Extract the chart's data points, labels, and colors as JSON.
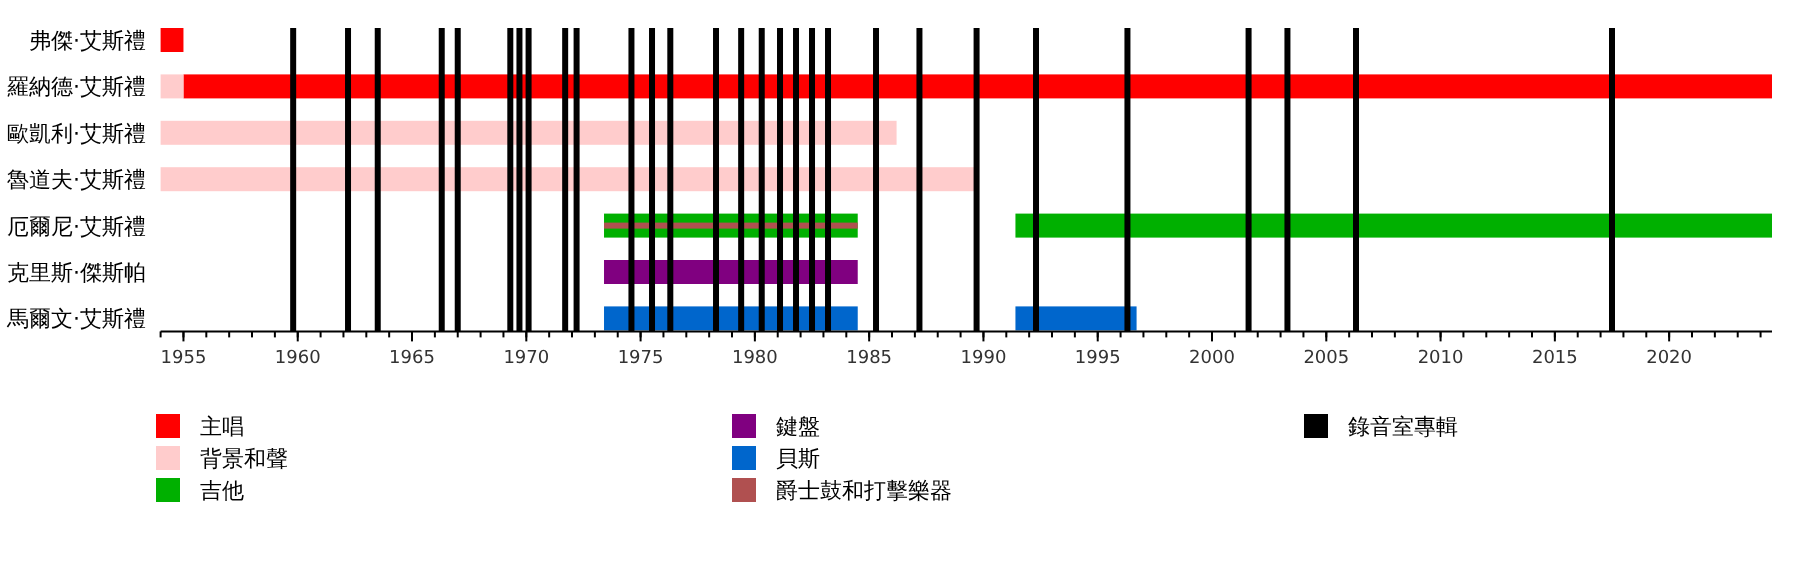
{
  "chart_data": {
    "type": "bar",
    "orientation": "horizontal",
    "legend": "bottom",
    "categories": [
      "弗傑·艾斯禮",
      "羅納德·艾斯禮",
      "歐凱利·艾斯禮",
      "魯道夫·艾斯禮",
      "厄爾尼·艾斯禮",
      "克里斯·傑斯帕",
      "馬爾文·艾斯禮"
    ],
    "xlim": [
      1954,
      2024.5
    ],
    "xticks": [
      1955,
      1960,
      1965,
      1970,
      1975,
      1980,
      1985,
      1990,
      1995,
      2000,
      2005,
      2010,
      2015,
      2020
    ],
    "series": [
      {
        "name": "主唱",
        "color": "#ff0000",
        "base": [
          1954,
          1955,
          null,
          null,
          null,
          null,
          null
        ],
        "values": [
          1,
          69.5,
          null,
          null,
          null,
          null,
          null
        ]
      },
      {
        "name": "背景和聲",
        "color": "#ffcccc",
        "base": [
          null,
          1954,
          1954,
          1954,
          null,
          null,
          null
        ],
        "values": [
          null,
          1,
          32.2,
          35.8,
          null,
          null,
          null
        ]
      },
      {
        "name": "吉他",
        "color": "#00b000",
        "base": [
          null,
          null,
          null,
          null,
          1973.4,
          null,
          null
        ],
        "values": [
          null,
          null,
          null,
          null,
          11.1,
          null,
          null
        ]
      },
      {
        "color": "#00b000",
        "base": [
          null,
          null,
          null,
          null,
          1991.4,
          null,
          null
        ],
        "values": [
          null,
          null,
          null,
          null,
          33.1,
          null,
          null
        ]
      },
      {
        "name": "鍵盤",
        "color": "#800080",
        "base": [
          null,
          null,
          null,
          null,
          null,
          1973.4,
          null
        ],
        "values": [
          null,
          null,
          null,
          null,
          null,
          11.1,
          null
        ]
      },
      {
        "name": "貝斯",
        "color": "#0066cc",
        "base": [
          null,
          null,
          null,
          null,
          null,
          null,
          1973.4
        ],
        "values": [
          null,
          null,
          null,
          null,
          null,
          null,
          11.1
        ]
      },
      {
        "color": "#0066cc",
        "base": [
          null,
          null,
          null,
          null,
          null,
          null,
          1991.4
        ],
        "values": [
          null,
          null,
          null,
          null,
          null,
          null,
          5.3
        ]
      },
      {
        "name": "爵士鼓和打擊樂器",
        "color": "#b05050",
        "base": [
          null,
          null,
          null,
          null,
          1973.4,
          null,
          null
        ],
        "values": [
          null,
          null,
          null,
          null,
          11.1,
          null,
          null
        ]
      }
    ],
    "ref_lines": [
      {
        "axis": "x",
        "value": 1959.8,
        "color": "#000000",
        "label": "錄音室專輯"
      },
      {
        "axis": "x",
        "value": 1962.2,
        "color": "#000000"
      },
      {
        "axis": "x",
        "value": 1963.5,
        "color": "#000000"
      },
      {
        "axis": "x",
        "value": 1966.3,
        "color": "#000000"
      },
      {
        "axis": "x",
        "value": 1967.0,
        "color": "#000000"
      },
      {
        "axis": "x",
        "value": 1969.3,
        "color": "#000000"
      },
      {
        "axis": "x",
        "value": 1969.7,
        "color": "#000000"
      },
      {
        "axis": "x",
        "value": 1970.1,
        "color": "#000000"
      },
      {
        "axis": "x",
        "value": 1971.7,
        "color": "#000000"
      },
      {
        "axis": "x",
        "value": 1972.2,
        "color": "#000000"
      },
      {
        "axis": "x",
        "value": 1974.6,
        "color": "#000000"
      },
      {
        "axis": "x",
        "value": 1975.5,
        "color": "#000000"
      },
      {
        "axis": "x",
        "value": 1976.3,
        "color": "#000000"
      },
      {
        "axis": "x",
        "value": 1978.3,
        "color": "#000000"
      },
      {
        "axis": "x",
        "value": 1979.4,
        "color": "#000000"
      },
      {
        "axis": "x",
        "value": 1980.3,
        "color": "#000000"
      },
      {
        "axis": "x",
        "value": 1981.1,
        "color": "#000000"
      },
      {
        "axis": "x",
        "value": 1981.8,
        "color": "#000000"
      },
      {
        "axis": "x",
        "value": 1982.5,
        "color": "#000000"
      },
      {
        "axis": "x",
        "value": 1983.2,
        "color": "#000000"
      },
      {
        "axis": "x",
        "value": 1985.3,
        "color": "#000000"
      },
      {
        "axis": "x",
        "value": 1987.2,
        "color": "#000000"
      },
      {
        "axis": "x",
        "value": 1989.7,
        "color": "#000000"
      },
      {
        "axis": "x",
        "value": 1992.3,
        "color": "#000000"
      },
      {
        "axis": "x",
        "value": 1996.3,
        "color": "#000000"
      },
      {
        "axis": "x",
        "value": 2001.6,
        "color": "#000000"
      },
      {
        "axis": "x",
        "value": 2003.3,
        "color": "#000000"
      },
      {
        "axis": "x",
        "value": 2006.3,
        "color": "#000000"
      },
      {
        "axis": "x",
        "value": 2017.5,
        "color": "#000000"
      }
    ]
  }
}
